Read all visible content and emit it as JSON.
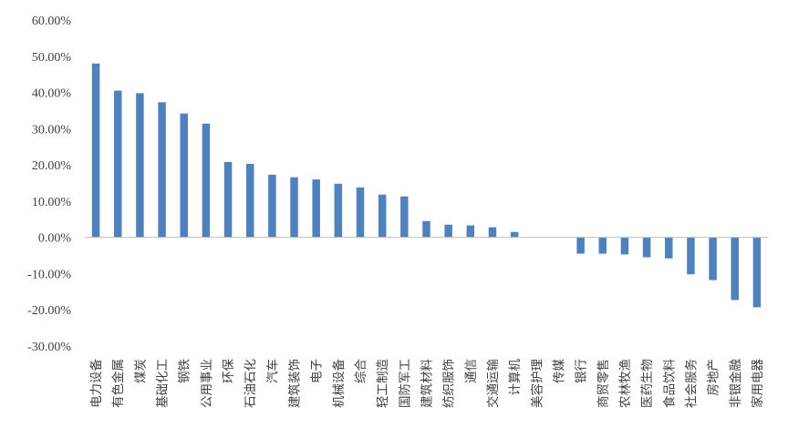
{
  "chart_data": {
    "type": "bar",
    "grid": false,
    "legend": "none",
    "color": "#4f81bd",
    "ylim": [
      -30,
      60
    ],
    "yticks": [
      "60.00%",
      "50.00%",
      "40.00%",
      "30.00%",
      "20.00%",
      "10.00%",
      "0.00%",
      "-10.00%",
      "-20.00%",
      "-30.00%"
    ],
    "ytick_values": [
      60,
      50,
      40,
      30,
      20,
      10,
      0,
      -10,
      -20,
      -30
    ],
    "categories": [
      "电力设备",
      "有色金属",
      "煤炭",
      "基础化工",
      "钢铁",
      "公用事业",
      "环保",
      "石油石化",
      "汽车",
      "建筑装饰",
      "电子",
      "机械设备",
      "综合",
      "轻工制造",
      "国防军工",
      "建筑材料",
      "纺织服饰",
      "通信",
      "交通运输",
      "计算机",
      "美容护理",
      "传媒",
      "银行",
      "商贸零售",
      "农林牧渔",
      "医药生物",
      "食品饮料",
      "社会服务",
      "房地产",
      "非银金融",
      "家用电器"
    ],
    "values": [
      48.0,
      40.5,
      39.8,
      37.3,
      34.2,
      31.4,
      20.8,
      20.3,
      17.3,
      16.6,
      16.0,
      14.8,
      13.8,
      11.8,
      11.3,
      4.5,
      3.5,
      3.3,
      2.8,
      1.5,
      0.0,
      0.0,
      -4.5,
      -4.5,
      -4.7,
      -5.5,
      -5.8,
      -10.2,
      -11.8,
      -17.3,
      -19.3
    ]
  }
}
